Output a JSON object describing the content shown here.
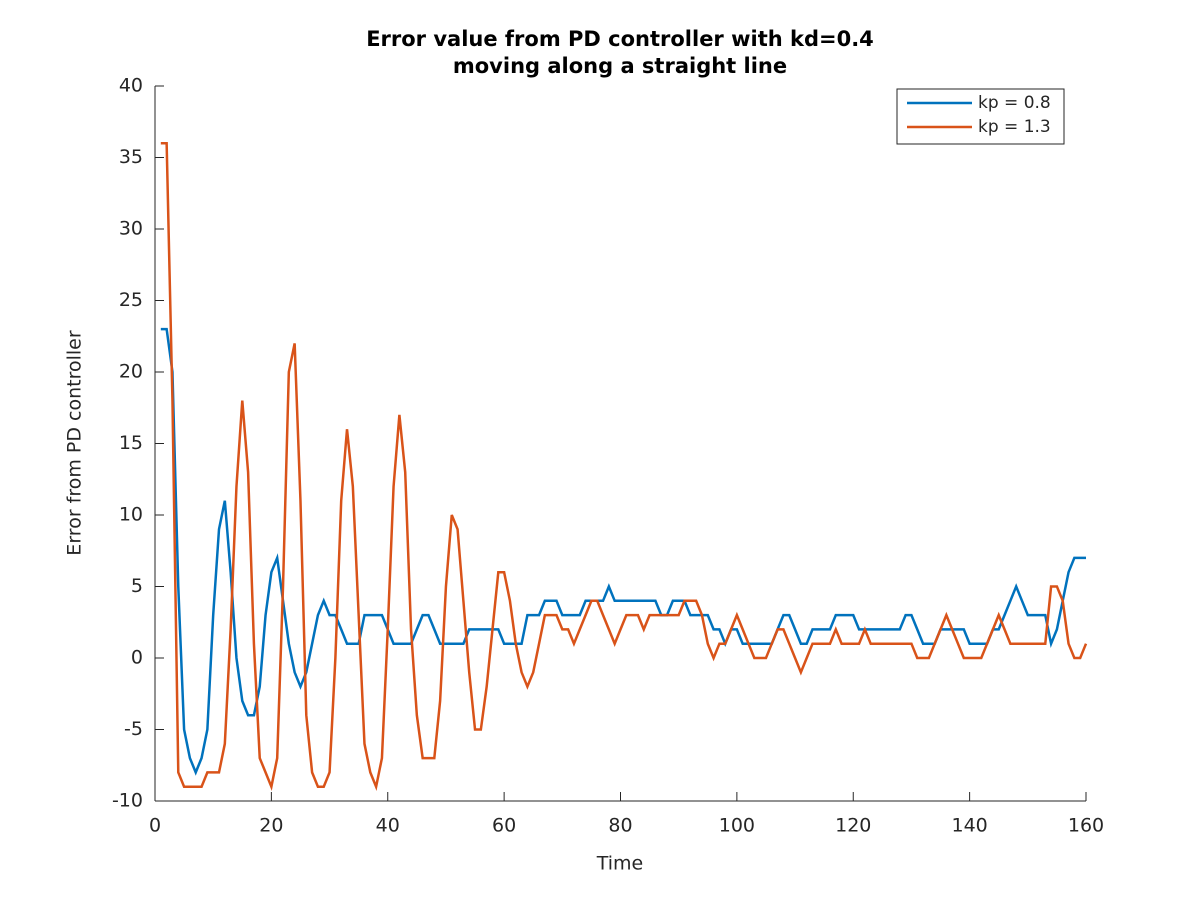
{
  "chart_data": {
    "type": "line",
    "title": [
      "Error value from PD controller with kd=0.4",
      "moving along a straight line"
    ],
    "xlabel": "Time",
    "ylabel": "Error from PD controller",
    "x": [
      1,
      2,
      3,
      4,
      5,
      6,
      7,
      8,
      9,
      10,
      11,
      12,
      13,
      14,
      15,
      16,
      17,
      18,
      19,
      20,
      21,
      22,
      23,
      24,
      25,
      26,
      27,
      28,
      29,
      30,
      31,
      32,
      33,
      34,
      35,
      36,
      37,
      38,
      39,
      40,
      41,
      42,
      43,
      44,
      45,
      46,
      47,
      48,
      49,
      50,
      51,
      52,
      53,
      54,
      55,
      56,
      57,
      58,
      59,
      60,
      61,
      62,
      63,
      64,
      65,
      66,
      67,
      68,
      69,
      70,
      71,
      72,
      73,
      74,
      75,
      76,
      77,
      78,
      79,
      80,
      81,
      82,
      83,
      84,
      85,
      86,
      87,
      88,
      89,
      90,
      91,
      92,
      93,
      94,
      95,
      96,
      97,
      98,
      99,
      100,
      101,
      102,
      103,
      104,
      105,
      106,
      107,
      108,
      109,
      110,
      111,
      112,
      113,
      114,
      115,
      116,
      117,
      118,
      119,
      120,
      121,
      122,
      123,
      124,
      125,
      126,
      127,
      128,
      129,
      130,
      131,
      132,
      133,
      134,
      135,
      136,
      137,
      138,
      139,
      140,
      141,
      142,
      143,
      144,
      145,
      146,
      147,
      148,
      149,
      150,
      151,
      152,
      153,
      154,
      155,
      156,
      157,
      158,
      159,
      160
    ],
    "series": [
      {
        "name": "kp = 0.8",
        "color": "#0072bd",
        "values": [
          23,
          23,
          20,
          5,
          -5,
          -7,
          -8,
          -7,
          -5,
          3,
          9,
          11,
          6,
          0,
          -3,
          -4,
          -4,
          -2,
          3,
          6,
          7,
          4,
          1,
          -1,
          -2,
          -1,
          1,
          3,
          4,
          3,
          3,
          2,
          1,
          1,
          1,
          3,
          3,
          3,
          3,
          2,
          1,
          1,
          1,
          1,
          2,
          3,
          3,
          2,
          1,
          1,
          1,
          1,
          1,
          2,
          2,
          2,
          2,
          2,
          2,
          1,
          1,
          1,
          1,
          3,
          3,
          3,
          4,
          4,
          4,
          3,
          3,
          3,
          3,
          4,
          4,
          4,
          4,
          5,
          4,
          4,
          4,
          4,
          4,
          4,
          4,
          4,
          3,
          3,
          4,
          4,
          4,
          3,
          3,
          3,
          3,
          2,
          2,
          1,
          2,
          2,
          1,
          1,
          1,
          1,
          1,
          1,
          2,
          3,
          3,
          2,
          1,
          1,
          2,
          2,
          2,
          2,
          3,
          3,
          3,
          3,
          2,
          2,
          2,
          2,
          2,
          2,
          2,
          2,
          3,
          3,
          2,
          1,
          1,
          1,
          2,
          2,
          2,
          2,
          2,
          1,
          1,
          1,
          1,
          2,
          2,
          3,
          4,
          5,
          4,
          3,
          3,
          3,
          3,
          1,
          2,
          4,
          6,
          7,
          7,
          7
        ]
      },
      {
        "name": "kp = 1.3",
        "color": "#d95319",
        "values": [
          36,
          36,
          18,
          -8,
          -9,
          -9,
          -9,
          -9,
          -8,
          -8,
          -8,
          -6,
          2,
          12,
          18,
          13,
          1,
          -7,
          -8,
          -9,
          -7,
          5,
          20,
          22,
          11,
          -4,
          -8,
          -9,
          -9,
          -8,
          0,
          11,
          16,
          12,
          3,
          -6,
          -8,
          -9,
          -7,
          2,
          12,
          17,
          13,
          2,
          -4,
          -7,
          -7,
          -7,
          -3,
          5,
          10,
          9,
          4,
          -1,
          -5,
          -5,
          -2,
          2,
          6,
          6,
          4,
          1,
          -1,
          -2,
          -1,
          1,
          3,
          3,
          3,
          2,
          2,
          1,
          2,
          3,
          4,
          4,
          3,
          2,
          1,
          2,
          3,
          3,
          3,
          2,
          3,
          3,
          3,
          3,
          3,
          3,
          4,
          4,
          4,
          3,
          1,
          0,
          1,
          1,
          2,
          3,
          2,
          1,
          0,
          0,
          0,
          1,
          2,
          2,
          1,
          0,
          -1,
          0,
          1,
          1,
          1,
          1,
          2,
          1,
          1,
          1,
          1,
          2,
          1,
          1,
          1,
          1,
          1,
          1,
          1,
          1,
          0,
          0,
          0,
          1,
          2,
          3,
          2,
          1,
          0,
          0,
          0,
          0,
          1,
          2,
          3,
          2,
          1,
          1,
          1,
          1,
          1,
          1,
          1,
          5,
          5,
          4,
          1,
          0,
          0,
          1
        ]
      }
    ],
    "xlim": [
      0,
      160
    ],
    "xticks": [
      0,
      20,
      40,
      60,
      80,
      100,
      120,
      140,
      160
    ],
    "ylim": [
      -10,
      40
    ],
    "yticks": [
      -10,
      -5,
      0,
      5,
      10,
      15,
      20,
      25,
      30,
      35,
      40
    ],
    "legend": "northeast"
  }
}
